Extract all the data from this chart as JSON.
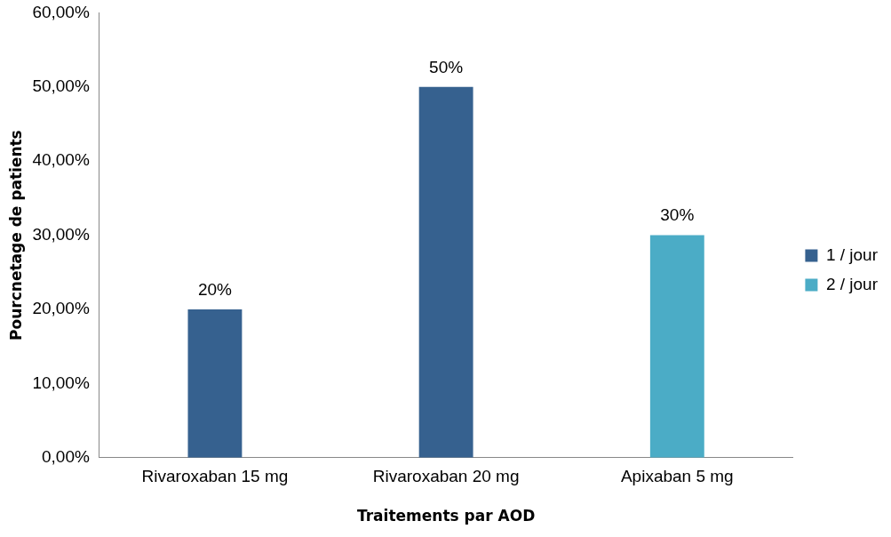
{
  "chart_data": {
    "type": "bar",
    "xlabel": "Traitements par AOD",
    "ylabel": "Pourcnetage de patients",
    "categories": [
      "Rivaroxaban 15 mg",
      "Rivaroxaban 20 mg",
      "Apixaban 5 mg"
    ],
    "series": [
      {
        "name": "1 / jour",
        "color": "#36618f",
        "values": [
          20,
          50,
          null
        ],
        "value_labels": [
          "20%",
          "50%",
          null
        ]
      },
      {
        "name": "2 / jour",
        "color": "#4bacc6",
        "values": [
          null,
          null,
          30
        ],
        "value_labels": [
          null,
          null,
          "30%"
        ]
      }
    ],
    "ylim": [
      0,
      60
    ],
    "yticks": [
      {
        "value": 0,
        "label": "0,00%"
      },
      {
        "value": 10,
        "label": "10,00%"
      },
      {
        "value": 20,
        "label": "20,00%"
      },
      {
        "value": 30,
        "label": "30,00%"
      },
      {
        "value": 40,
        "label": "40,00%"
      },
      {
        "value": 50,
        "label": "50,00%"
      },
      {
        "value": 60,
        "label": "60,00%"
      }
    ],
    "grid": false,
    "legend": "right"
  }
}
